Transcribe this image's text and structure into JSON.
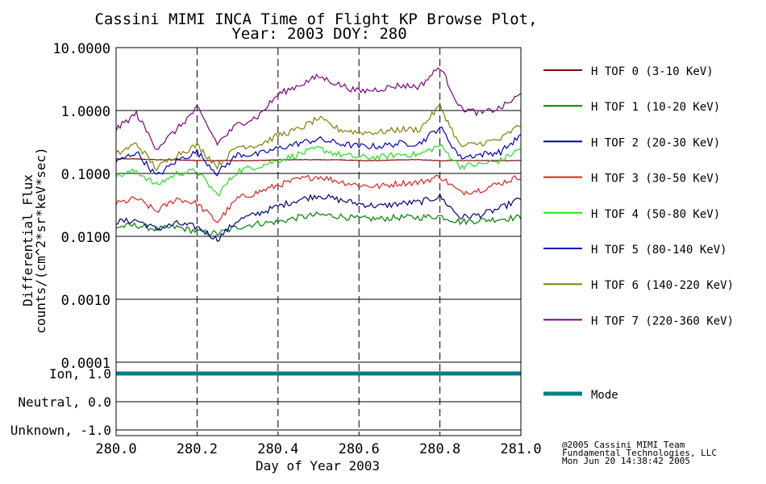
{
  "chart_data": {
    "type": "line",
    "title_line1": "Cassini MIMI INCA Time of Flight KP Browse Plot,",
    "title_line2": "Year: 2003 DOY: 280",
    "xlabel": "Day of Year 2003",
    "xlim": [
      280.0,
      281.0
    ],
    "x_ticks": [
      "280.0",
      "280.2",
      "280.4",
      "280.6",
      "280.8",
      "281.0"
    ],
    "x_tick_values": [
      280.0,
      280.2,
      280.4,
      280.6,
      280.8,
      281.0
    ],
    "ylabel_line1": "Differential Flux",
    "ylabel_line2": "counts/(cm^2*sr*keV*sec)",
    "ylim": [
      0.0001,
      10.0
    ],
    "y_scale": "log",
    "y_ticks": [
      "10.0000",
      "1.0000",
      "0.1000",
      "0.0100",
      "0.0010",
      "0.0001"
    ],
    "y_tick_values": [
      10,
      1,
      0.1,
      0.01,
      0.001,
      0.0001
    ],
    "x": [
      280.0,
      280.05,
      280.1,
      280.15,
      280.2,
      280.25,
      280.3,
      280.35,
      280.4,
      280.45,
      280.5,
      280.55,
      280.6,
      280.65,
      280.7,
      280.75,
      280.8,
      280.85,
      280.9,
      280.95,
      281.0
    ],
    "series": [
      {
        "name": "H TOF 0 (3-10 KeV)",
        "color": "#800000",
        "values": [
          0.17,
          0.17,
          0.165,
          0.165,
          0.16,
          0.16,
          0.16,
          0.16,
          0.165,
          0.165,
          0.165,
          0.165,
          0.16,
          0.16,
          0.165,
          0.165,
          0.16,
          0.16,
          0.16,
          0.16,
          0.16
        ]
      },
      {
        "name": "H TOF 1 (10-20 KeV)",
        "color": "#008000",
        "values": [
          0.014,
          0.015,
          0.013,
          0.014,
          0.012,
          0.011,
          0.014,
          0.016,
          0.017,
          0.02,
          0.022,
          0.021,
          0.019,
          0.019,
          0.02,
          0.02,
          0.021,
          0.017,
          0.018,
          0.019,
          0.02
        ]
      },
      {
        "name": "H TOF 2 (20-30 KeV)",
        "color": "#000080",
        "values": [
          0.017,
          0.018,
          0.013,
          0.016,
          0.014,
          0.009,
          0.018,
          0.023,
          0.03,
          0.038,
          0.045,
          0.038,
          0.033,
          0.03,
          0.033,
          0.035,
          0.043,
          0.02,
          0.022,
          0.028,
          0.04
        ]
      },
      {
        "name": "H TOF 3 (30-50 KeV)",
        "color": "#e02020",
        "values": [
          0.033,
          0.04,
          0.025,
          0.04,
          0.033,
          0.017,
          0.04,
          0.05,
          0.065,
          0.08,
          0.09,
          0.075,
          0.065,
          0.062,
          0.07,
          0.072,
          0.09,
          0.05,
          0.055,
          0.07,
          0.09
        ]
      },
      {
        "name": "H TOF 4 (50-80 KeV)",
        "color": "#20e020",
        "values": [
          0.09,
          0.11,
          0.065,
          0.1,
          0.11,
          0.045,
          0.11,
          0.13,
          0.16,
          0.2,
          0.25,
          0.2,
          0.18,
          0.18,
          0.2,
          0.2,
          0.28,
          0.13,
          0.14,
          0.16,
          0.25
        ]
      },
      {
        "name": "H TOF 5 (80-140 KeV)",
        "color": "#0000c0",
        "values": [
          0.15,
          0.22,
          0.09,
          0.16,
          0.22,
          0.1,
          0.2,
          0.2,
          0.25,
          0.3,
          0.35,
          0.3,
          0.27,
          0.27,
          0.3,
          0.3,
          0.55,
          0.18,
          0.2,
          0.22,
          0.4
        ]
      },
      {
        "name": "H TOF 6 (140-220 KeV)",
        "color": "#808000",
        "values": [
          0.2,
          0.3,
          0.12,
          0.2,
          0.28,
          0.13,
          0.27,
          0.28,
          0.4,
          0.5,
          0.75,
          0.5,
          0.45,
          0.45,
          0.5,
          0.5,
          1.2,
          0.27,
          0.3,
          0.35,
          0.6
        ]
      },
      {
        "name": "H TOF 7 (220-360 KeV)",
        "color": "#800080",
        "values": [
          0.5,
          0.9,
          0.25,
          0.5,
          1.1,
          0.3,
          0.6,
          0.8,
          1.8,
          2.5,
          3.5,
          2.6,
          2.0,
          2.2,
          2.5,
          2.4,
          5.0,
          1.1,
          0.9,
          1.1,
          1.8
        ]
      }
    ],
    "mode_panel": {
      "y_ticks": [
        "Ion, 1.0",
        "Neutral, 0.0",
        "Unknown, -1.0"
      ],
      "y_tick_values": [
        1.0,
        0.0,
        -1.0
      ],
      "ylim": [
        -1.2,
        1.4
      ],
      "series": {
        "name": "Mode",
        "color": "#008080",
        "values": [
          1.0,
          1.0
        ]
      },
      "x": [
        280.0,
        281.0
      ]
    }
  },
  "footer": {
    "line1": "@2005 Cassini MIMI Team",
    "line2": "Fundamental Technologies, LLC",
    "line3": "Mon Jun 20 14:38:42 2005"
  }
}
